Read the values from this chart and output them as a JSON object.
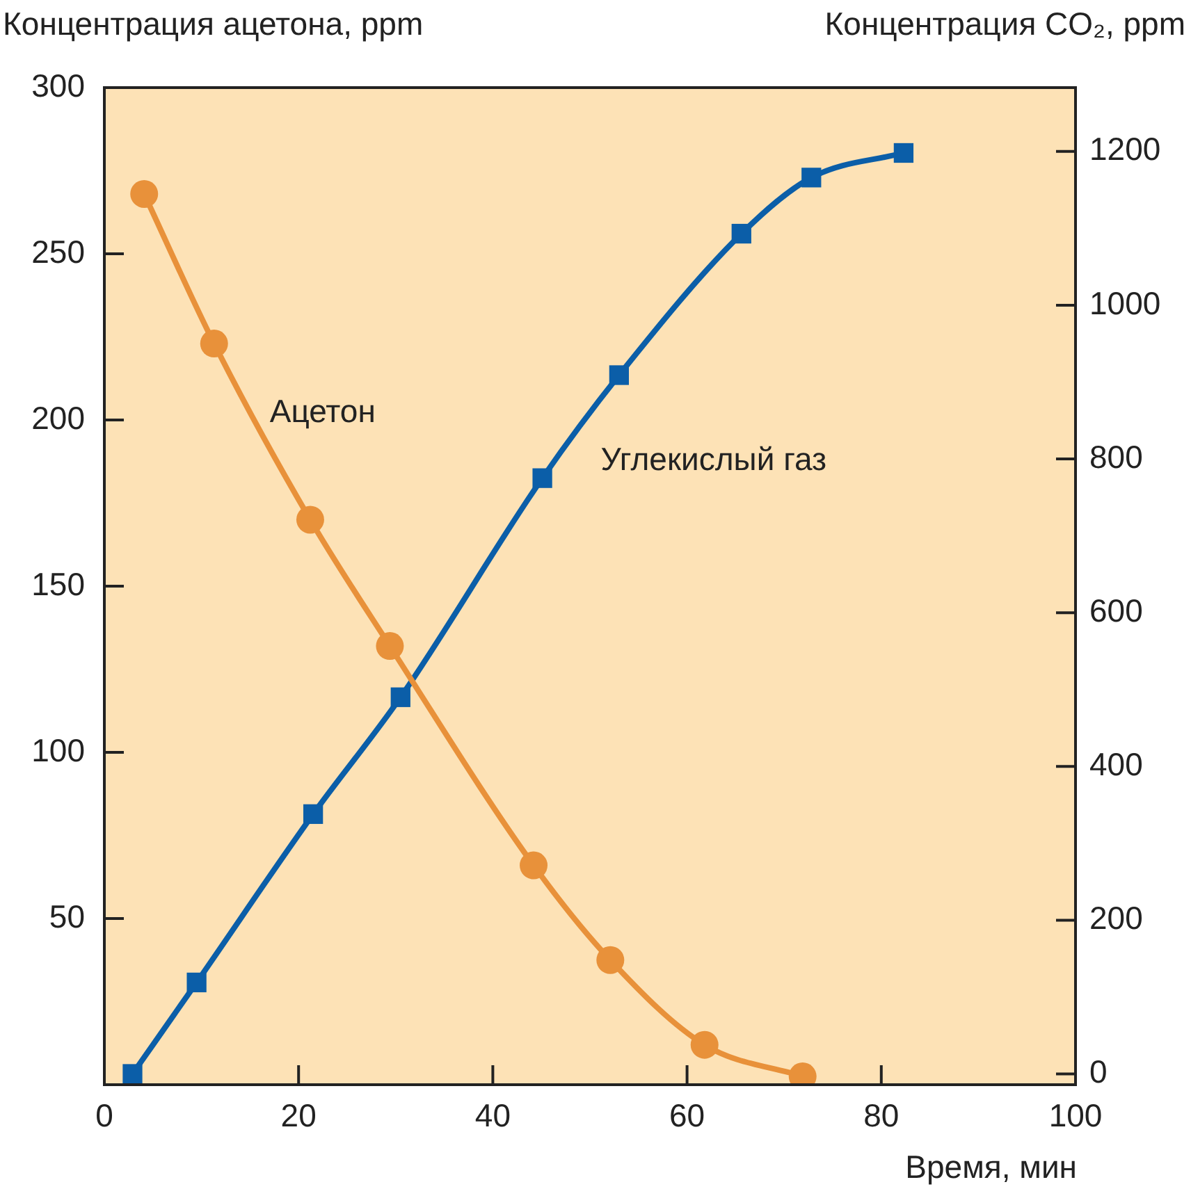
{
  "chart_data": {
    "type": "line",
    "xlabel": "Время, мин",
    "ylabel": "Концентрация ацетона, ppm",
    "y2label": "Концентрация CO₂, ppm",
    "xlim": [
      0,
      100
    ],
    "xticks": [
      0,
      20,
      40,
      60,
      80,
      100
    ],
    "ylim": [
      0,
      300
    ],
    "yticks": [
      50,
      100,
      150,
      200,
      250,
      300
    ],
    "y2lim": [
      -14,
      1283
    ],
    "y2ticks": [
      0,
      200,
      400,
      600,
      800,
      1000,
      1200
    ],
    "grid": false,
    "legend": false,
    "series": [
      {
        "name": "Ацетон",
        "color": "#e8913a",
        "marker": "circle",
        "x": [
          4.1,
          11.3,
          21.2,
          29.4,
          44.2,
          52.1,
          61.8,
          71.9
        ],
        "values": [
          268,
          223,
          170,
          132,
          66,
          37.5,
          12,
          2.5
        ]
      },
      {
        "name": "Углекислый газ",
        "color": "#0b5ea8",
        "marker": "square",
        "axis": "y2",
        "x": [
          2.9,
          9.5,
          21.5,
          30.5,
          45.1,
          53,
          65.6,
          72.8,
          82.3
        ],
        "values": [
          0,
          119,
          338,
          490,
          775,
          909,
          1093,
          1166,
          1198
        ]
      }
    ]
  }
}
